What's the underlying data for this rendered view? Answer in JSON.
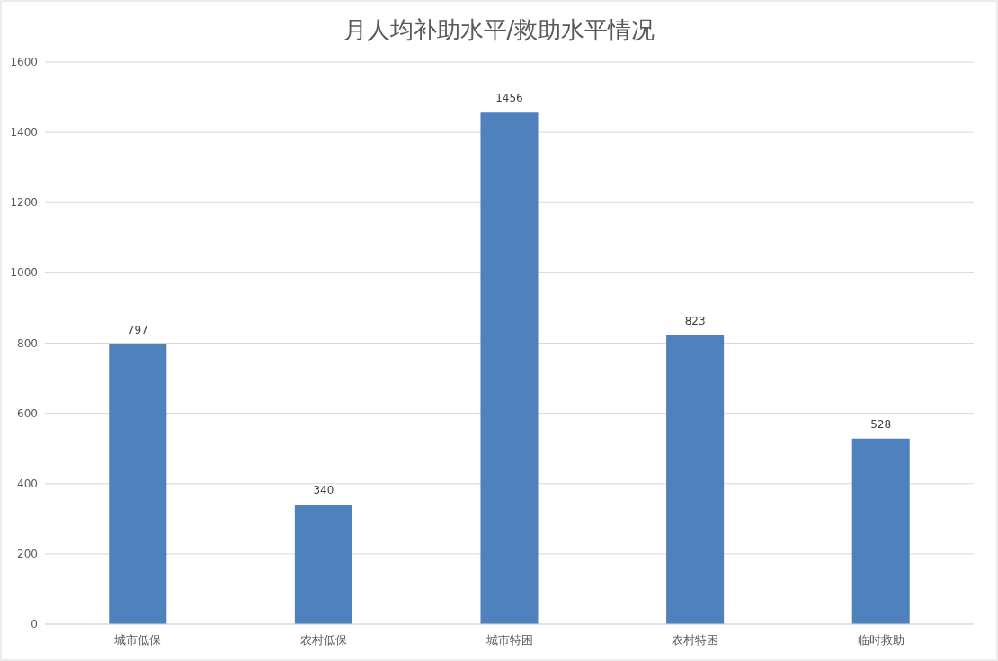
{
  "chart_data": {
    "type": "bar",
    "title": "月人均补助水平/救助水平情况",
    "categories": [
      "城市低保",
      "农村低保",
      "城市特困",
      "农村特困",
      "临时救助"
    ],
    "values": [
      797,
      340,
      1456,
      823,
      528
    ],
    "color": "#4f81bd",
    "ylim": [
      0,
      1600
    ],
    "yticks": [
      0,
      200,
      400,
      600,
      800,
      1000,
      1200,
      1400,
      1600
    ],
    "grid": "y",
    "data_labels": true
  }
}
